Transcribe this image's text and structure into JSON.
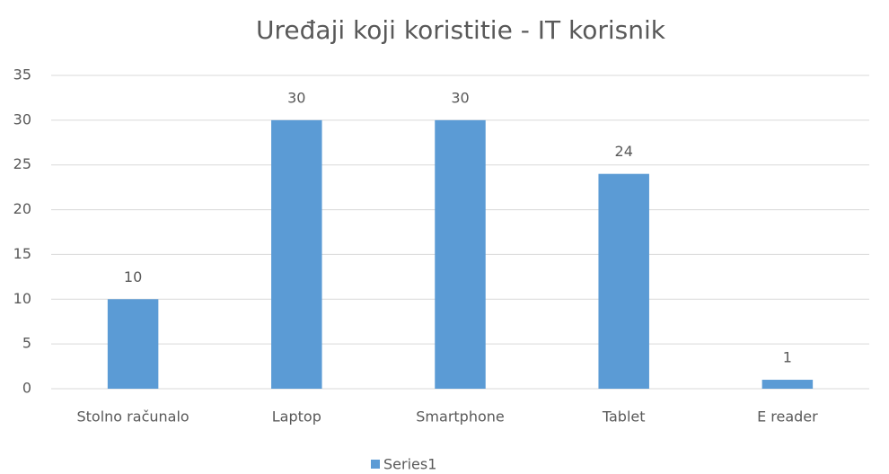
{
  "chart_data": {
    "type": "bar",
    "title": "Uređaji koji koristitie - IT korisnik",
    "categories": [
      "Stolno računalo",
      "Laptop",
      "Smartphone",
      "Tablet",
      "E reader"
    ],
    "series": [
      {
        "name": "Series1",
        "color": "#5b9bd5",
        "values": [
          10,
          30,
          30,
          24,
          1
        ]
      }
    ],
    "ylim": [
      0,
      35
    ],
    "yticks": [
      0,
      5,
      10,
      15,
      20,
      25,
      30,
      35
    ],
    "grid": true,
    "legend": "bottom",
    "data_labels": true
  }
}
